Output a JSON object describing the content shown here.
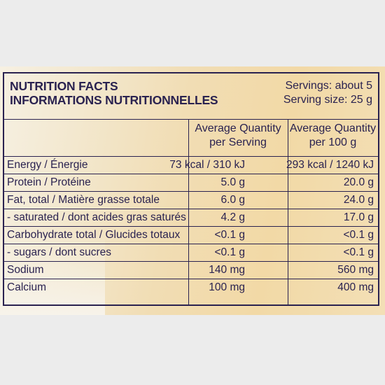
{
  "title": {
    "line1": "NUTRITION FACTS",
    "line2": "INFORMATIONS NUTRITIONNELLES"
  },
  "servings": {
    "per_package": "Servings: about 5",
    "size": "Serving size: 25 g"
  },
  "columns": {
    "per_serving": [
      "Average Quantity",
      "per Serving"
    ],
    "per_100g": [
      "Average Quantity",
      "per 100 g"
    ]
  },
  "rows": [
    {
      "nutrient": "Energy / Énergie",
      "per_serving": "73 kcal / 310 kJ",
      "per_100g": "293 kcal / 1240 kJ"
    },
    {
      "nutrient": "Protein / Protéine",
      "per_serving": "5.0 g",
      "per_100g": "20.0 g"
    },
    {
      "nutrient": "Fat, total / Matière grasse totale",
      "per_serving": "6.0 g",
      "per_100g": "24.0 g"
    },
    {
      "nutrient": "- saturated / dont acides gras saturés",
      "per_serving": "4.2 g",
      "per_100g": "17.0 g"
    },
    {
      "nutrient": "Carbohydrate total / Glucides totaux",
      "per_serving": "<0.1 g",
      "per_100g": "<0.1 g"
    },
    {
      "nutrient": "- sugars / dont sucres",
      "per_serving": "<0.1 g",
      "per_100g": "<0.1 g"
    },
    {
      "nutrient": "Sodium",
      "per_serving": "140 mg",
      "per_100g": "560 mg"
    },
    {
      "nutrient": "Calcium",
      "per_serving": "100 mg",
      "per_100g": "400 mg"
    }
  ],
  "colors": {
    "ink": "#2a2250",
    "label_background": "#f2d9a6"
  }
}
